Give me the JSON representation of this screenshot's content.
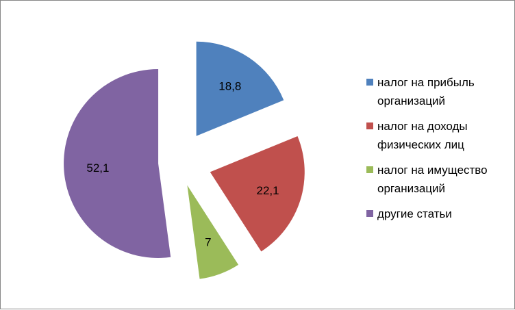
{
  "chart_data": {
    "type": "pie",
    "title": "",
    "exploded": true,
    "legend_position": "right",
    "categories": [
      "налог на прибыль организаций",
      "налог на доходы физических лиц",
      "налог на имущество организаций",
      "другие статьи"
    ],
    "values": [
      18.8,
      22.1,
      7,
      52.1
    ],
    "value_labels": [
      "18,8",
      "22,1",
      "7",
      "52,1"
    ],
    "legend": [
      {
        "lines": [
          "налог на прибыль",
          "организаций"
        ],
        "color": "#4F81BD"
      },
      {
        "lines": [
          "налог на доходы",
          "физических лиц"
        ],
        "color": "#C0504D"
      },
      {
        "lines": [
          "налог на имущество",
          "организаций"
        ],
        "color": "#9BBB59"
      },
      {
        "lines": [
          "другие статьи"
        ],
        "color": "#8064A2"
      }
    ],
    "colors": [
      "#4F81BD",
      "#C0504D",
      "#9BBB59",
      "#8064A2"
    ]
  }
}
